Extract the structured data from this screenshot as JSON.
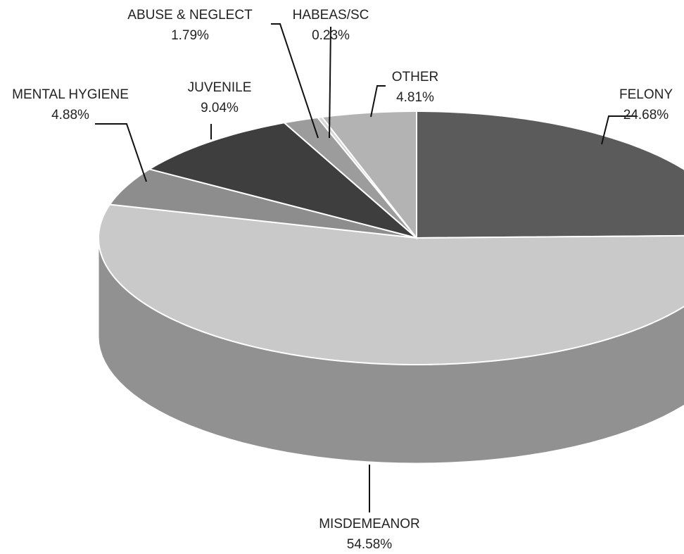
{
  "chart_data": {
    "type": "pie3d",
    "categories": [
      "FELONY",
      "MISDEMEANOR",
      "MENTAL HYGIENE",
      "JUVENILE",
      "ABUSE & NEGLECT",
      "HABEAS/SC",
      "OTHER"
    ],
    "values": [
      24.68,
      54.58,
      4.88,
      9.04,
      1.79,
      0.23,
      4.81
    ],
    "value_labels": [
      "24.68%",
      "54.58%",
      "4.88%",
      "9.04%",
      "1.79%",
      "0.23%",
      "4.81%"
    ],
    "colors": [
      "#5b5b5b",
      "#c9c9c9",
      "#8d8d8d",
      "#3e3e3e",
      "#9c9c9c",
      "#d6d6d6",
      "#b3b3b3"
    ]
  }
}
